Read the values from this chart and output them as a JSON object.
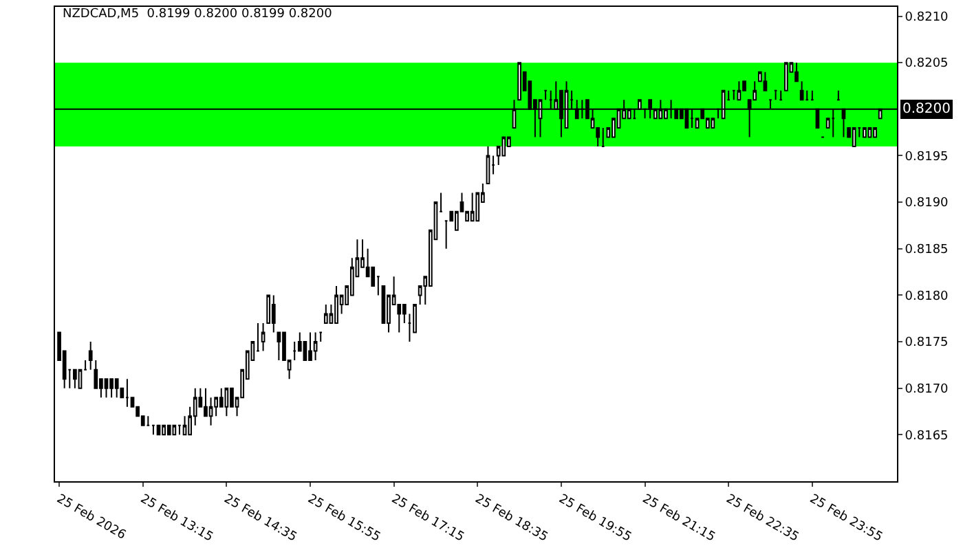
{
  "chart_data": {
    "type": "candlestick",
    "title": "NZDCAD,M5  0.8199 0.8200 0.8199 0.8200",
    "color": "#000000",
    "x": [
      "2026-02-25T11:55",
      "2026-02-25T12:00",
      "2026-02-25T12:05",
      "2026-02-25T12:10",
      "2026-02-25T12:15",
      "2026-02-25T12:20",
      "2026-02-25T12:25",
      "2026-02-25T12:30",
      "2026-02-25T12:35",
      "2026-02-25T12:40",
      "2026-02-25T12:45",
      "2026-02-25T12:50",
      "2026-02-25T12:55",
      "2026-02-25T13:00",
      "2026-02-25T13:05",
      "2026-02-25T13:10",
      "2026-02-25T13:15",
      "2026-02-25T13:20",
      "2026-02-25T13:25",
      "2026-02-25T13:30",
      "2026-02-25T13:35",
      "2026-02-25T13:40",
      "2026-02-25T13:45",
      "2026-02-25T13:50",
      "2026-02-25T13:55",
      "2026-02-25T14:00",
      "2026-02-25T14:05",
      "2026-02-25T14:10",
      "2026-02-25T14:15",
      "2026-02-25T14:20",
      "2026-02-25T14:25",
      "2026-02-25T14:30",
      "2026-02-25T14:35",
      "2026-02-25T14:40",
      "2026-02-25T14:45",
      "2026-02-25T14:50",
      "2026-02-25T14:55",
      "2026-02-25T15:00",
      "2026-02-25T15:05",
      "2026-02-25T15:10",
      "2026-02-25T15:15",
      "2026-02-25T15:20",
      "2026-02-25T15:25",
      "2026-02-25T15:30",
      "2026-02-25T15:35",
      "2026-02-25T15:40",
      "2026-02-25T15:45",
      "2026-02-25T15:50",
      "2026-02-25T15:55",
      "2026-02-25T16:00",
      "2026-02-25T16:05",
      "2026-02-25T16:10",
      "2026-02-25T16:15",
      "2026-02-25T16:20",
      "2026-02-25T16:25",
      "2026-02-25T16:30",
      "2026-02-25T16:35",
      "2026-02-25T16:40",
      "2026-02-25T16:45",
      "2026-02-25T16:50",
      "2026-02-25T16:55",
      "2026-02-25T17:00",
      "2026-02-25T17:05",
      "2026-02-25T17:10",
      "2026-02-25T17:15",
      "2026-02-25T17:20",
      "2026-02-25T17:25",
      "2026-02-25T17:30",
      "2026-02-25T17:35",
      "2026-02-25T17:40",
      "2026-02-25T17:45",
      "2026-02-25T17:50",
      "2026-02-25T17:55",
      "2026-02-25T18:00",
      "2026-02-25T18:05",
      "2026-02-25T18:10",
      "2026-02-25T18:15",
      "2026-02-25T18:20",
      "2026-02-25T18:25",
      "2026-02-25T18:30",
      "2026-02-25T18:35",
      "2026-02-25T18:40",
      "2026-02-25T18:45",
      "2026-02-25T18:50",
      "2026-02-25T18:55",
      "2026-02-25T19:00",
      "2026-02-25T19:05",
      "2026-02-25T19:10",
      "2026-02-25T19:15",
      "2026-02-25T19:20",
      "2026-02-25T19:25",
      "2026-02-25T19:30",
      "2026-02-25T19:35",
      "2026-02-25T19:40",
      "2026-02-25T19:45",
      "2026-02-25T19:50",
      "2026-02-25T19:55",
      "2026-02-25T20:00",
      "2026-02-25T20:05",
      "2026-02-25T20:10",
      "2026-02-25T20:15",
      "2026-02-25T20:20",
      "2026-02-25T20:25",
      "2026-02-25T20:30",
      "2026-02-25T20:35",
      "2026-02-25T20:40",
      "2026-02-25T20:45",
      "2026-02-25T20:50",
      "2026-02-25T20:55",
      "2026-02-25T21:00",
      "2026-02-25T21:05",
      "2026-02-25T21:10",
      "2026-02-25T21:15",
      "2026-02-25T21:20",
      "2026-02-25T21:25",
      "2026-02-25T21:30",
      "2026-02-25T21:35",
      "2026-02-25T21:40",
      "2026-02-25T21:45",
      "2026-02-25T21:50",
      "2026-02-25T21:55",
      "2026-02-25T22:00",
      "2026-02-25T22:05",
      "2026-02-25T22:10",
      "2026-02-25T22:15",
      "2026-02-25T22:20",
      "2026-02-25T22:25",
      "2026-02-25T22:30",
      "2026-02-25T22:35",
      "2026-02-25T22:40",
      "2026-02-25T22:45",
      "2026-02-25T22:50",
      "2026-02-25T22:55",
      "2026-02-25T23:00",
      "2026-02-25T23:05",
      "2026-02-25T23:10",
      "2026-02-25T23:15",
      "2026-02-25T23:20",
      "2026-02-25T23:25",
      "2026-02-25T23:30",
      "2026-02-25T23:35",
      "2026-02-25T23:40",
      "2026-02-25T23:45",
      "2026-02-25T23:50",
      "2026-02-25T23:55",
      "2026-02-26T00:00",
      "2026-02-26T00:05",
      "2026-02-26T00:10",
      "2026-02-26T00:15",
      "2026-02-26T00:20",
      "2026-02-26T00:25",
      "2026-02-26T00:30",
      "2026-02-26T00:35",
      "2026-02-26T00:40",
      "2026-02-26T00:45",
      "2026-02-26T00:50",
      "2026-02-26T00:55",
      "2026-02-26T01:00"
    ],
    "ohlc": [
      [
        0.8176,
        0.8176,
        0.8173,
        0.8173
      ],
      [
        0.8174,
        0.8174,
        0.817,
        0.8171
      ],
      [
        0.8172,
        0.8172,
        0.817,
        0.8172
      ],
      [
        0.8172,
        0.8172,
        0.817,
        0.8171
      ],
      [
        0.817,
        0.8172,
        0.817,
        0.8172
      ],
      [
        0.8172,
        0.8173,
        0.8172,
        0.8172
      ],
      [
        0.8174,
        0.8175,
        0.8172,
        0.8173
      ],
      [
        0.8172,
        0.8173,
        0.817,
        0.817
      ],
      [
        0.8171,
        0.8171,
        0.8169,
        0.817
      ],
      [
        0.8171,
        0.8171,
        0.8169,
        0.817
      ],
      [
        0.8171,
        0.8171,
        0.8169,
        0.817
      ],
      [
        0.8171,
        0.8171,
        0.8169,
        0.817
      ],
      [
        0.817,
        0.817,
        0.8169,
        0.8169
      ],
      [
        0.8169,
        0.8171,
        0.8168,
        0.8169
      ],
      [
        0.8169,
        0.8169,
        0.8168,
        0.8168
      ],
      [
        0.8168,
        0.8168,
        0.8167,
        0.8167
      ],
      [
        0.8167,
        0.8167,
        0.8166,
        0.8166
      ],
      [
        0.8166,
        0.8167,
        0.8166,
        0.8166
      ],
      [
        0.8166,
        0.8166,
        0.8165,
        0.8166
      ],
      [
        0.8166,
        0.8166,
        0.8165,
        0.8165
      ],
      [
        0.8165,
        0.8166,
        0.8165,
        0.8166
      ],
      [
        0.8166,
        0.8166,
        0.8165,
        0.8165
      ],
      [
        0.8165,
        0.8166,
        0.8165,
        0.8166
      ],
      [
        0.8166,
        0.8166,
        0.8165,
        0.8166
      ],
      [
        0.8165,
        0.8167,
        0.8165,
        0.8166
      ],
      [
        0.8165,
        0.8168,
        0.8165,
        0.8167
      ],
      [
        0.8167,
        0.817,
        0.8166,
        0.8169
      ],
      [
        0.8169,
        0.817,
        0.8168,
        0.8168
      ],
      [
        0.8168,
        0.817,
        0.8167,
        0.8167
      ],
      [
        0.8167,
        0.8169,
        0.8166,
        0.8168
      ],
      [
        0.8168,
        0.8169,
        0.8167,
        0.8169
      ],
      [
        0.8169,
        0.817,
        0.8168,
        0.8168
      ],
      [
        0.8168,
        0.817,
        0.8167,
        0.817
      ],
      [
        0.817,
        0.817,
        0.8168,
        0.8168
      ],
      [
        0.8168,
        0.8169,
        0.8167,
        0.8169
      ],
      [
        0.8169,
        0.8172,
        0.8169,
        0.8172
      ],
      [
        0.8171,
        0.8174,
        0.8171,
        0.8174
      ],
      [
        0.8173,
        0.8175,
        0.8173,
        0.8175
      ],
      [
        0.8174,
        0.8177,
        0.8174,
        0.8174
      ],
      [
        0.8175,
        0.8177,
        0.8174,
        0.8176
      ],
      [
        0.8177,
        0.818,
        0.8177,
        0.818
      ],
      [
        0.8179,
        0.818,
        0.8176,
        0.8177
      ],
      [
        0.8176,
        0.8176,
        0.8173,
        0.8175
      ],
      [
        0.8176,
        0.8176,
        0.8173,
        0.8173
      ],
      [
        0.8172,
        0.8173,
        0.8171,
        0.8173
      ],
      [
        0.8174,
        0.8175,
        0.8173,
        0.8174
      ],
      [
        0.8175,
        0.8176,
        0.8174,
        0.8174
      ],
      [
        0.8175,
        0.8175,
        0.8173,
        0.8173
      ],
      [
        0.8174,
        0.8176,
        0.8173,
        0.8173
      ],
      [
        0.8174,
        0.8176,
        0.8173,
        0.8175
      ],
      [
        0.8176,
        0.8176,
        0.8175,
        0.8176
      ],
      [
        0.8177,
        0.8179,
        0.8177,
        0.8178
      ],
      [
        0.8177,
        0.8179,
        0.8177,
        0.8178
      ],
      [
        0.8177,
        0.8181,
        0.8177,
        0.818
      ],
      [
        0.8179,
        0.818,
        0.8178,
        0.818
      ],
      [
        0.8179,
        0.8181,
        0.8179,
        0.8181
      ],
      [
        0.818,
        0.8184,
        0.818,
        0.8183
      ],
      [
        0.8182,
        0.8186,
        0.8182,
        0.8184
      ],
      [
        0.8183,
        0.8186,
        0.8183,
        0.8184
      ],
      [
        0.8183,
        0.8185,
        0.8182,
        0.8182
      ],
      [
        0.8183,
        0.8183,
        0.8181,
        0.8181
      ],
      [
        0.8182,
        0.8182,
        0.818,
        0.8182
      ],
      [
        0.8181,
        0.8181,
        0.8177,
        0.8177
      ],
      [
        0.8177,
        0.818,
        0.8176,
        0.818
      ],
      [
        0.8179,
        0.8182,
        0.8179,
        0.818
      ],
      [
        0.8179,
        0.8179,
        0.8176,
        0.8178
      ],
      [
        0.8179,
        0.8179,
        0.8177,
        0.8178
      ],
      [
        0.8177,
        0.8178,
        0.8175,
        0.8177
      ],
      [
        0.8176,
        0.8179,
        0.8176,
        0.8179
      ],
      [
        0.818,
        0.8181,
        0.8179,
        0.8181
      ],
      [
        0.8181,
        0.8182,
        0.8179,
        0.8182
      ],
      [
        0.8181,
        0.8187,
        0.8181,
        0.8187
      ],
      [
        0.8186,
        0.819,
        0.8186,
        0.819
      ],
      [
        0.8189,
        0.8191,
        0.8189,
        0.8189
      ],
      [
        0.8188,
        0.8188,
        0.8185,
        0.8188
      ],
      [
        0.8189,
        0.8189,
        0.8188,
        0.8188
      ],
      [
        0.8187,
        0.8189,
        0.8187,
        0.8189
      ],
      [
        0.819,
        0.8191,
        0.8189,
        0.8189
      ],
      [
        0.8188,
        0.8189,
        0.8188,
        0.8189
      ],
      [
        0.8188,
        0.8191,
        0.8188,
        0.8189
      ],
      [
        0.8188,
        0.8191,
        0.8188,
        0.8191
      ],
      [
        0.819,
        0.8192,
        0.819,
        0.8191
      ],
      [
        0.8192,
        0.8196,
        0.8192,
        0.8195
      ],
      [
        0.8194,
        0.8195,
        0.8193,
        0.8194
      ],
      [
        0.8195,
        0.8196,
        0.8194,
        0.8196
      ],
      [
        0.8195,
        0.8197,
        0.8195,
        0.8197
      ],
      [
        0.8196,
        0.8197,
        0.8196,
        0.8197
      ],
      [
        0.8198,
        0.8201,
        0.8198,
        0.82
      ],
      [
        0.8201,
        0.8205,
        0.8201,
        0.8205
      ],
      [
        0.8204,
        0.8204,
        0.8202,
        0.8202
      ],
      [
        0.8203,
        0.8203,
        0.82,
        0.82
      ],
      [
        0.8201,
        0.8201,
        0.8197,
        0.82
      ],
      [
        0.8199,
        0.8201,
        0.8197,
        0.8201
      ],
      [
        0.8202,
        0.8202,
        0.8201,
        0.8202
      ],
      [
        0.8201,
        0.8202,
        0.82,
        0.8201
      ],
      [
        0.82,
        0.8203,
        0.82,
        0.8201
      ],
      [
        0.8202,
        0.8202,
        0.8197,
        0.8199
      ],
      [
        0.8198,
        0.8203,
        0.8198,
        0.8202
      ],
      [
        0.8201,
        0.8202,
        0.82,
        0.8201
      ],
      [
        0.82,
        0.8201,
        0.8199,
        0.8199
      ],
      [
        0.82,
        0.8201,
        0.8199,
        0.82
      ],
      [
        0.8201,
        0.8201,
        0.8199,
        0.8199
      ],
      [
        0.8198,
        0.82,
        0.8198,
        0.8199
      ],
      [
        0.8198,
        0.8198,
        0.8196,
        0.8197
      ],
      [
        0.8196,
        0.8198,
        0.8196,
        0.8196
      ],
      [
        0.8197,
        0.8198,
        0.8197,
        0.8198
      ],
      [
        0.8197,
        0.8199,
        0.8197,
        0.8199
      ],
      [
        0.8198,
        0.82,
        0.8198,
        0.82
      ],
      [
        0.8199,
        0.8201,
        0.8199,
        0.82
      ],
      [
        0.8199,
        0.82,
        0.8199,
        0.82
      ],
      [
        0.8199,
        0.82,
        0.8199,
        0.8199
      ],
      [
        0.82,
        0.8201,
        0.82,
        0.8201
      ],
      [
        0.82,
        0.82,
        0.8199,
        0.82
      ],
      [
        0.8201,
        0.8201,
        0.8199,
        0.82
      ],
      [
        0.8199,
        0.82,
        0.8199,
        0.82
      ],
      [
        0.8199,
        0.8201,
        0.8199,
        0.82
      ],
      [
        0.8199,
        0.82,
        0.8199,
        0.82
      ],
      [
        0.82,
        0.8201,
        0.8199,
        0.82
      ],
      [
        0.82,
        0.82,
        0.8199,
        0.8199
      ],
      [
        0.82,
        0.82,
        0.8199,
        0.8199
      ],
      [
        0.82,
        0.82,
        0.8198,
        0.8198
      ],
      [
        0.8199,
        0.82,
        0.8198,
        0.8199
      ],
      [
        0.8198,
        0.8199,
        0.8198,
        0.8199
      ],
      [
        0.82,
        0.82,
        0.8199,
        0.8199
      ],
      [
        0.8198,
        0.8199,
        0.8198,
        0.8199
      ],
      [
        0.8198,
        0.8199,
        0.8198,
        0.8199
      ],
      [
        0.82,
        0.82,
        0.8199,
        0.82
      ],
      [
        0.8199,
        0.8202,
        0.8199,
        0.8202
      ],
      [
        0.8201,
        0.8202,
        0.8201,
        0.8201
      ],
      [
        0.8202,
        0.8202,
        0.8201,
        0.8202
      ],
      [
        0.8201,
        0.8203,
        0.8201,
        0.8202
      ],
      [
        0.8203,
        0.8203,
        0.8202,
        0.8202
      ],
      [
        0.8201,
        0.8201,
        0.8197,
        0.82
      ],
      [
        0.8201,
        0.8203,
        0.8201,
        0.8202
      ],
      [
        0.8203,
        0.8204,
        0.8203,
        0.8204
      ],
      [
        0.8203,
        0.8204,
        0.8202,
        0.8202
      ],
      [
        0.8201,
        0.8201,
        0.82,
        0.8201
      ],
      [
        0.8202,
        0.8202,
        0.8201,
        0.8202
      ],
      [
        0.8201,
        0.8202,
        0.8201,
        0.8201
      ],
      [
        0.8202,
        0.8205,
        0.8202,
        0.8205
      ],
      [
        0.8204,
        0.8205,
        0.8204,
        0.8205
      ],
      [
        0.8204,
        0.8205,
        0.8203,
        0.8203
      ],
      [
        0.8202,
        0.8203,
        0.8201,
        0.8201
      ],
      [
        0.8201,
        0.8202,
        0.8201,
        0.8201
      ],
      [
        0.8201,
        0.8202,
        0.8201,
        0.8201
      ],
      [
        0.82,
        0.82,
        0.8198,
        0.8198
      ],
      [
        0.8197,
        0.8197,
        0.8197,
        0.8197
      ],
      [
        0.8198,
        0.8199,
        0.8198,
        0.8199
      ],
      [
        0.8199,
        0.82,
        0.8197,
        0.8199
      ],
      [
        0.8201,
        0.8202,
        0.8201,
        0.8201
      ],
      [
        0.82,
        0.82,
        0.8197,
        0.8199
      ],
      [
        0.8198,
        0.8198,
        0.8197,
        0.8197
      ],
      [
        0.8196,
        0.8198,
        0.8196,
        0.8198
      ],
      [
        0.8198,
        0.8198,
        0.8197,
        0.8198
      ],
      [
        0.8197,
        0.8198,
        0.8197,
        0.8198
      ],
      [
        0.8197,
        0.8198,
        0.8197,
        0.8198
      ],
      [
        0.8197,
        0.8198,
        0.8197,
        0.8198
      ],
      [
        0.8199,
        0.82,
        0.8199,
        0.82
      ]
    ],
    "xlim": [
      "2026-02-25T11:51",
      "2026-02-26T01:16"
    ],
    "xticks": [
      {
        "value": "2026-02-25T11:55",
        "label": "25 Feb 2026"
      },
      {
        "value": "2026-02-25T13:15",
        "label": "25 Feb 13:15"
      },
      {
        "value": "2026-02-25T14:35",
        "label": "25 Feb 14:35"
      },
      {
        "value": "2026-02-25T15:55",
        "label": "25 Feb 15:55"
      },
      {
        "value": "2026-02-25T17:15",
        "label": "25 Feb 17:15"
      },
      {
        "value": "2026-02-25T18:35",
        "label": "25 Feb 18:35"
      },
      {
        "value": "2026-02-25T19:55",
        "label": "25 Feb 19:55"
      },
      {
        "value": "2026-02-25T21:15",
        "label": "25 Feb 21:15"
      },
      {
        "value": "2026-02-25T22:35",
        "label": "25 Feb 22:35"
      },
      {
        "value": "2026-02-25T23:55",
        "label": "25 Feb 23:55"
      }
    ],
    "ylim": [
      0.816,
      0.8211
    ],
    "yticks": [
      {
        "value": 0.8165,
        "label": "0.8165"
      },
      {
        "value": 0.817,
        "label": "0.8170"
      },
      {
        "value": 0.8175,
        "label": "0.8175"
      },
      {
        "value": 0.818,
        "label": "0.8180"
      },
      {
        "value": 0.8185,
        "label": "0.8185"
      },
      {
        "value": 0.819,
        "label": "0.8190"
      },
      {
        "value": 0.8195,
        "label": "0.8195"
      },
      {
        "value": 0.8205,
        "label": "0.8205"
      },
      {
        "value": 0.821,
        "label": "0.8210"
      }
    ],
    "bands": [
      {
        "axis": "y",
        "from": 0.8196,
        "to": 0.8205,
        "color": "#00ff00"
      }
    ],
    "ref_lines": [
      {
        "axis": "y",
        "value": 0.82,
        "label": "0.8200",
        "color": "#000000"
      }
    ]
  }
}
